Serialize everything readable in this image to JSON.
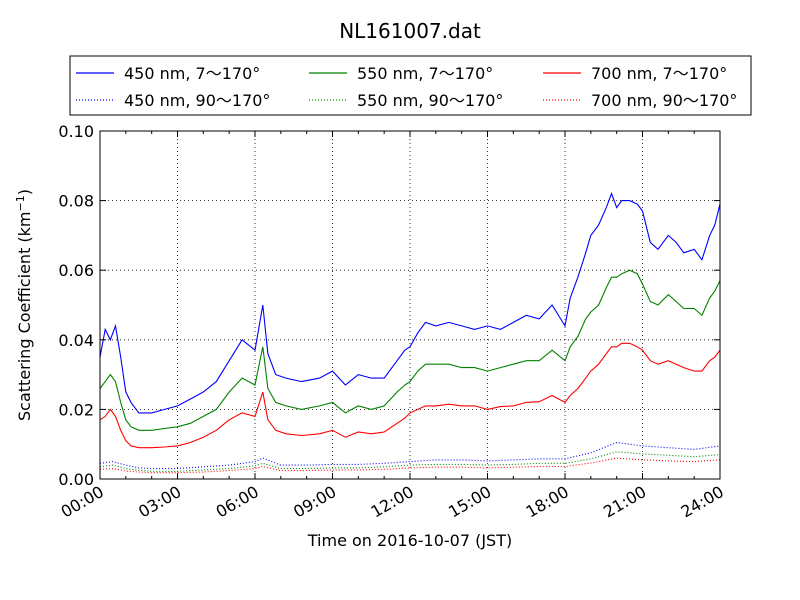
{
  "chart_data": {
    "type": "line",
    "title": "NL161007.dat",
    "xlabel": "Time on 2016-10-07 (JST)",
    "ylabel_main": "Scattering Coefficient (km",
    "ylabel_sup": "−1",
    "ylabel_close": ")",
    "xlim": [
      0,
      24
    ],
    "ylim": [
      0,
      0.1
    ],
    "x_unit": "hours",
    "x_ticks": [
      0,
      3,
      6,
      9,
      12,
      15,
      18,
      21,
      24
    ],
    "x_tick_labels": [
      "00:00",
      "03:00",
      "06:00",
      "09:00",
      "12:00",
      "15:00",
      "18:00",
      "21:00",
      "24:00"
    ],
    "y_ticks": [
      0,
      0.02,
      0.04,
      0.06,
      0.08,
      0.1
    ],
    "y_tick_labels": [
      "0.00",
      "0.02",
      "0.04",
      "0.06",
      "0.08",
      "0.10"
    ],
    "grid": true,
    "legend_position": "above plot",
    "series": [
      {
        "name": "450 nm, 7～170°",
        "color": "#0000ff",
        "style": "solid",
        "x": [
          0,
          0.2,
          0.4,
          0.6,
          0.8,
          1.0,
          1.2,
          1.5,
          2.0,
          2.5,
          3.0,
          3.5,
          4.0,
          4.5,
          5.0,
          5.5,
          6.0,
          6.3,
          6.5,
          6.8,
          7.2,
          7.8,
          8.5,
          9.0,
          9.5,
          10.0,
          10.5,
          11.0,
          11.5,
          11.8,
          12.0,
          12.3,
          12.6,
          13.0,
          13.5,
          14.0,
          14.5,
          15.0,
          15.5,
          16.0,
          16.5,
          17.0,
          17.5,
          18.0,
          18.2,
          18.5,
          18.8,
          19.0,
          19.3,
          19.6,
          19.8,
          20.0,
          20.2,
          20.5,
          20.8,
          21.0,
          21.3,
          21.6,
          22.0,
          22.3,
          22.6,
          23.0,
          23.3,
          23.6,
          23.8,
          24.0
        ],
        "y": [
          0.035,
          0.043,
          0.04,
          0.044,
          0.035,
          0.025,
          0.022,
          0.019,
          0.019,
          0.02,
          0.021,
          0.023,
          0.025,
          0.028,
          0.034,
          0.04,
          0.037,
          0.05,
          0.036,
          0.03,
          0.029,
          0.028,
          0.029,
          0.031,
          0.027,
          0.03,
          0.029,
          0.029,
          0.034,
          0.037,
          0.038,
          0.042,
          0.045,
          0.044,
          0.045,
          0.044,
          0.043,
          0.044,
          0.043,
          0.045,
          0.047,
          0.046,
          0.05,
          0.044,
          0.052,
          0.058,
          0.065,
          0.07,
          0.073,
          0.078,
          0.082,
          0.078,
          0.08,
          0.08,
          0.079,
          0.077,
          0.068,
          0.066,
          0.07,
          0.068,
          0.065,
          0.066,
          0.063,
          0.07,
          0.073,
          0.079
        ]
      },
      {
        "name": "450 nm, 90～170°",
        "color": "#0000ff",
        "style": "dotted",
        "x": [
          0,
          0.5,
          1.0,
          1.5,
          2.0,
          3.0,
          4.0,
          5.0,
          6.0,
          6.3,
          7.0,
          8.0,
          9.0,
          10.0,
          11.0,
          12.0,
          13.0,
          14.0,
          15.0,
          16.0,
          17.0,
          18.0,
          19.0,
          20.0,
          21.0,
          22.0,
          23.0,
          24.0
        ],
        "y": [
          0.0045,
          0.005,
          0.004,
          0.0032,
          0.003,
          0.003,
          0.0035,
          0.004,
          0.005,
          0.006,
          0.004,
          0.004,
          0.0042,
          0.0042,
          0.0045,
          0.005,
          0.0055,
          0.0055,
          0.0052,
          0.0055,
          0.0058,
          0.0058,
          0.0075,
          0.0105,
          0.0095,
          0.009,
          0.0085,
          0.0095
        ]
      },
      {
        "name": "550 nm, 7～170°",
        "color": "#008000",
        "style": "solid",
        "x": [
          0,
          0.2,
          0.4,
          0.6,
          0.8,
          1.0,
          1.2,
          1.5,
          2.0,
          2.5,
          3.0,
          3.5,
          4.0,
          4.5,
          5.0,
          5.5,
          6.0,
          6.3,
          6.5,
          6.8,
          7.2,
          7.8,
          8.5,
          9.0,
          9.5,
          10.0,
          10.5,
          11.0,
          11.5,
          11.8,
          12.0,
          12.3,
          12.6,
          13.0,
          13.5,
          14.0,
          14.5,
          15.0,
          15.5,
          16.0,
          16.5,
          17.0,
          17.5,
          18.0,
          18.2,
          18.5,
          18.8,
          19.0,
          19.3,
          19.6,
          19.8,
          20.0,
          20.2,
          20.5,
          20.8,
          21.0,
          21.3,
          21.6,
          22.0,
          22.3,
          22.6,
          23.0,
          23.3,
          23.6,
          23.8,
          24.0
        ],
        "y": [
          0.026,
          0.028,
          0.03,
          0.028,
          0.022,
          0.017,
          0.015,
          0.014,
          0.014,
          0.0145,
          0.015,
          0.016,
          0.018,
          0.02,
          0.025,
          0.029,
          0.027,
          0.038,
          0.026,
          0.022,
          0.021,
          0.02,
          0.021,
          0.022,
          0.019,
          0.021,
          0.02,
          0.021,
          0.025,
          0.027,
          0.028,
          0.031,
          0.033,
          0.033,
          0.033,
          0.032,
          0.032,
          0.031,
          0.032,
          0.033,
          0.034,
          0.034,
          0.037,
          0.034,
          0.038,
          0.041,
          0.046,
          0.048,
          0.05,
          0.055,
          0.058,
          0.058,
          0.059,
          0.06,
          0.059,
          0.056,
          0.051,
          0.05,
          0.053,
          0.051,
          0.049,
          0.049,
          0.047,
          0.052,
          0.054,
          0.057
        ]
      },
      {
        "name": "550 nm, 90～170°",
        "color": "#008000",
        "style": "dotted",
        "x": [
          0,
          0.5,
          1.0,
          1.5,
          2.0,
          3.0,
          4.0,
          5.0,
          6.0,
          6.3,
          7.0,
          8.0,
          9.0,
          10.0,
          11.0,
          12.0,
          13.0,
          14.0,
          15.0,
          16.0,
          17.0,
          18.0,
          19.0,
          20.0,
          21.0,
          22.0,
          23.0,
          24.0
        ],
        "y": [
          0.0035,
          0.004,
          0.003,
          0.0025,
          0.0022,
          0.0022,
          0.0026,
          0.003,
          0.0038,
          0.0045,
          0.003,
          0.003,
          0.0032,
          0.0032,
          0.0035,
          0.004,
          0.0042,
          0.0042,
          0.004,
          0.0042,
          0.0045,
          0.0045,
          0.0058,
          0.0078,
          0.0072,
          0.0068,
          0.0064,
          0.007
        ]
      },
      {
        "name": "700 nm, 7～170°",
        "color": "#ff0000",
        "style": "solid",
        "x": [
          0,
          0.2,
          0.4,
          0.6,
          0.8,
          1.0,
          1.2,
          1.5,
          2.0,
          2.5,
          3.0,
          3.5,
          4.0,
          4.5,
          5.0,
          5.5,
          6.0,
          6.3,
          6.5,
          6.8,
          7.2,
          7.8,
          8.5,
          9.0,
          9.5,
          10.0,
          10.5,
          11.0,
          11.5,
          11.8,
          12.0,
          12.3,
          12.6,
          13.0,
          13.5,
          14.0,
          14.5,
          15.0,
          15.5,
          16.0,
          16.5,
          17.0,
          17.5,
          18.0,
          18.2,
          18.5,
          18.8,
          19.0,
          19.3,
          19.6,
          19.8,
          20.0,
          20.2,
          20.5,
          20.8,
          21.0,
          21.3,
          21.6,
          22.0,
          22.3,
          22.6,
          23.0,
          23.3,
          23.6,
          23.8,
          24.0
        ],
        "y": [
          0.017,
          0.018,
          0.02,
          0.018,
          0.014,
          0.011,
          0.0095,
          0.009,
          0.009,
          0.0092,
          0.0095,
          0.0105,
          0.012,
          0.014,
          0.017,
          0.019,
          0.018,
          0.025,
          0.017,
          0.014,
          0.013,
          0.0125,
          0.013,
          0.014,
          0.012,
          0.0135,
          0.013,
          0.0135,
          0.016,
          0.0175,
          0.019,
          0.02,
          0.021,
          0.021,
          0.0215,
          0.021,
          0.021,
          0.02,
          0.0208,
          0.021,
          0.022,
          0.0222,
          0.024,
          0.022,
          0.024,
          0.026,
          0.029,
          0.031,
          0.033,
          0.036,
          0.038,
          0.038,
          0.039,
          0.039,
          0.038,
          0.037,
          0.034,
          0.033,
          0.034,
          0.033,
          0.032,
          0.031,
          0.031,
          0.034,
          0.035,
          0.037
        ]
      },
      {
        "name": "700 nm, 90～170°",
        "color": "#ff0000",
        "style": "dotted",
        "x": [
          0,
          0.5,
          1.0,
          1.5,
          2.0,
          3.0,
          4.0,
          5.0,
          6.0,
          6.3,
          7.0,
          8.0,
          9.0,
          10.0,
          11.0,
          12.0,
          13.0,
          14.0,
          15.0,
          16.0,
          17.0,
          18.0,
          19.0,
          20.0,
          21.0,
          22.0,
          23.0,
          24.0
        ],
        "y": [
          0.0028,
          0.003,
          0.0023,
          0.002,
          0.0018,
          0.0018,
          0.002,
          0.0024,
          0.003,
          0.0036,
          0.0024,
          0.0024,
          0.0026,
          0.0026,
          0.0028,
          0.0032,
          0.0034,
          0.0034,
          0.0032,
          0.0034,
          0.0036,
          0.0036,
          0.0046,
          0.006,
          0.0055,
          0.0052,
          0.005,
          0.0055
        ]
      }
    ]
  }
}
